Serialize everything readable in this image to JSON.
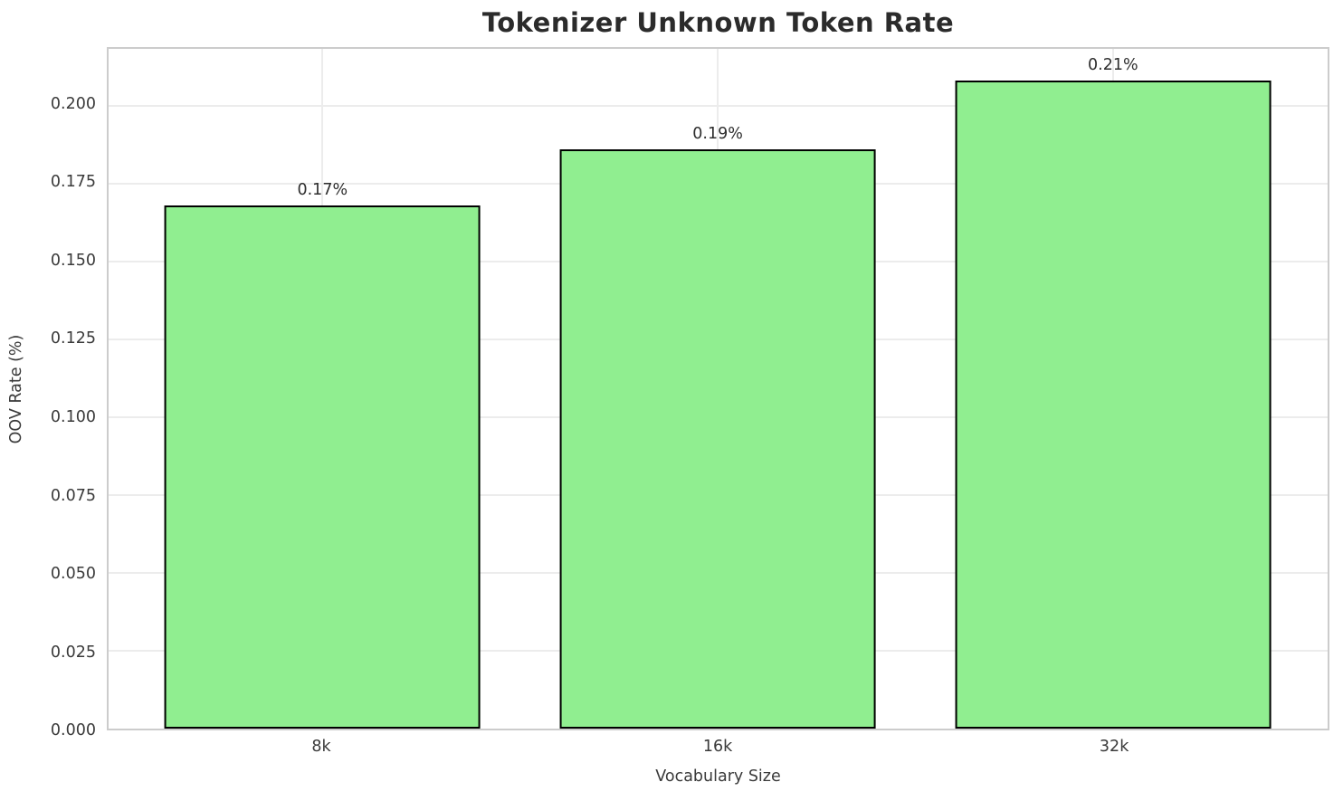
{
  "chart_data": {
    "type": "bar",
    "title": "Tokenizer Unknown Token Rate",
    "xlabel": "Vocabulary Size",
    "ylabel": "OOV Rate (%)",
    "categories": [
      "8k",
      "16k",
      "32k"
    ],
    "values": [
      0.168,
      0.186,
      0.208
    ],
    "bar_labels": [
      "0.17%",
      "0.19%",
      "0.21%"
    ],
    "yticks": [
      0.0,
      0.025,
      0.05,
      0.075,
      0.1,
      0.125,
      0.15,
      0.175,
      0.2
    ],
    "ytick_labels": [
      "0.000",
      "0.025",
      "0.050",
      "0.075",
      "0.100",
      "0.125",
      "0.150",
      "0.175",
      "0.200"
    ],
    "ylim": [
      0,
      0.2182
    ],
    "grid": "both",
    "legend": "none",
    "bar_color": "#90EE90",
    "bar_edge_color": "#000000",
    "gridline_color": "#ececec",
    "spine_color": "#cccccc"
  }
}
